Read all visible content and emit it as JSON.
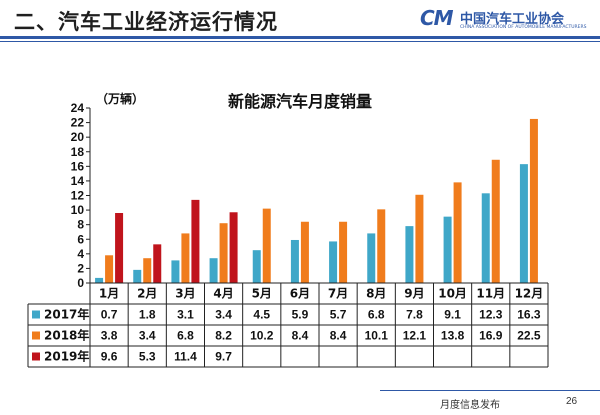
{
  "header": {
    "title": "二、汽车工业经济运行情况",
    "logo_mark": "CM",
    "logo_cn": "中国汽车工业协会",
    "logo_en": "CHINA ASSOCIATION OF AUTOMOBILE MANUFACTURERS",
    "accent_color": "#2e58a6"
  },
  "footer": {
    "text": "月度信息发布",
    "page_number": "26"
  },
  "chart_data": {
    "type": "bar",
    "title": "新能源汽车月度销量",
    "unit_label": "（万辆）",
    "categories": [
      "1月",
      "2月",
      "3月",
      "4月",
      "5月",
      "6月",
      "7月",
      "8月",
      "9月",
      "10月",
      "11月",
      "12月"
    ],
    "ylim": [
      0,
      24
    ],
    "ytick_step": 2,
    "grid": false,
    "legend_placement": "table-left",
    "series": [
      {
        "name": "2017年",
        "color": "#3fa7c8",
        "values": [
          0.7,
          1.8,
          3.1,
          3.4,
          4.5,
          5.9,
          5.7,
          6.8,
          7.8,
          9.1,
          12.3,
          16.3
        ]
      },
      {
        "name": "2018年",
        "color": "#f07c1c",
        "values": [
          3.8,
          3.4,
          6.8,
          8.2,
          10.2,
          8.4,
          8.4,
          10.1,
          12.1,
          13.8,
          16.9,
          22.5
        ]
      },
      {
        "name": "2019年",
        "color": "#c0141c",
        "values": [
          9.6,
          5.3,
          11.4,
          9.7,
          null,
          null,
          null,
          null,
          null,
          null,
          null,
          null
        ]
      }
    ]
  }
}
